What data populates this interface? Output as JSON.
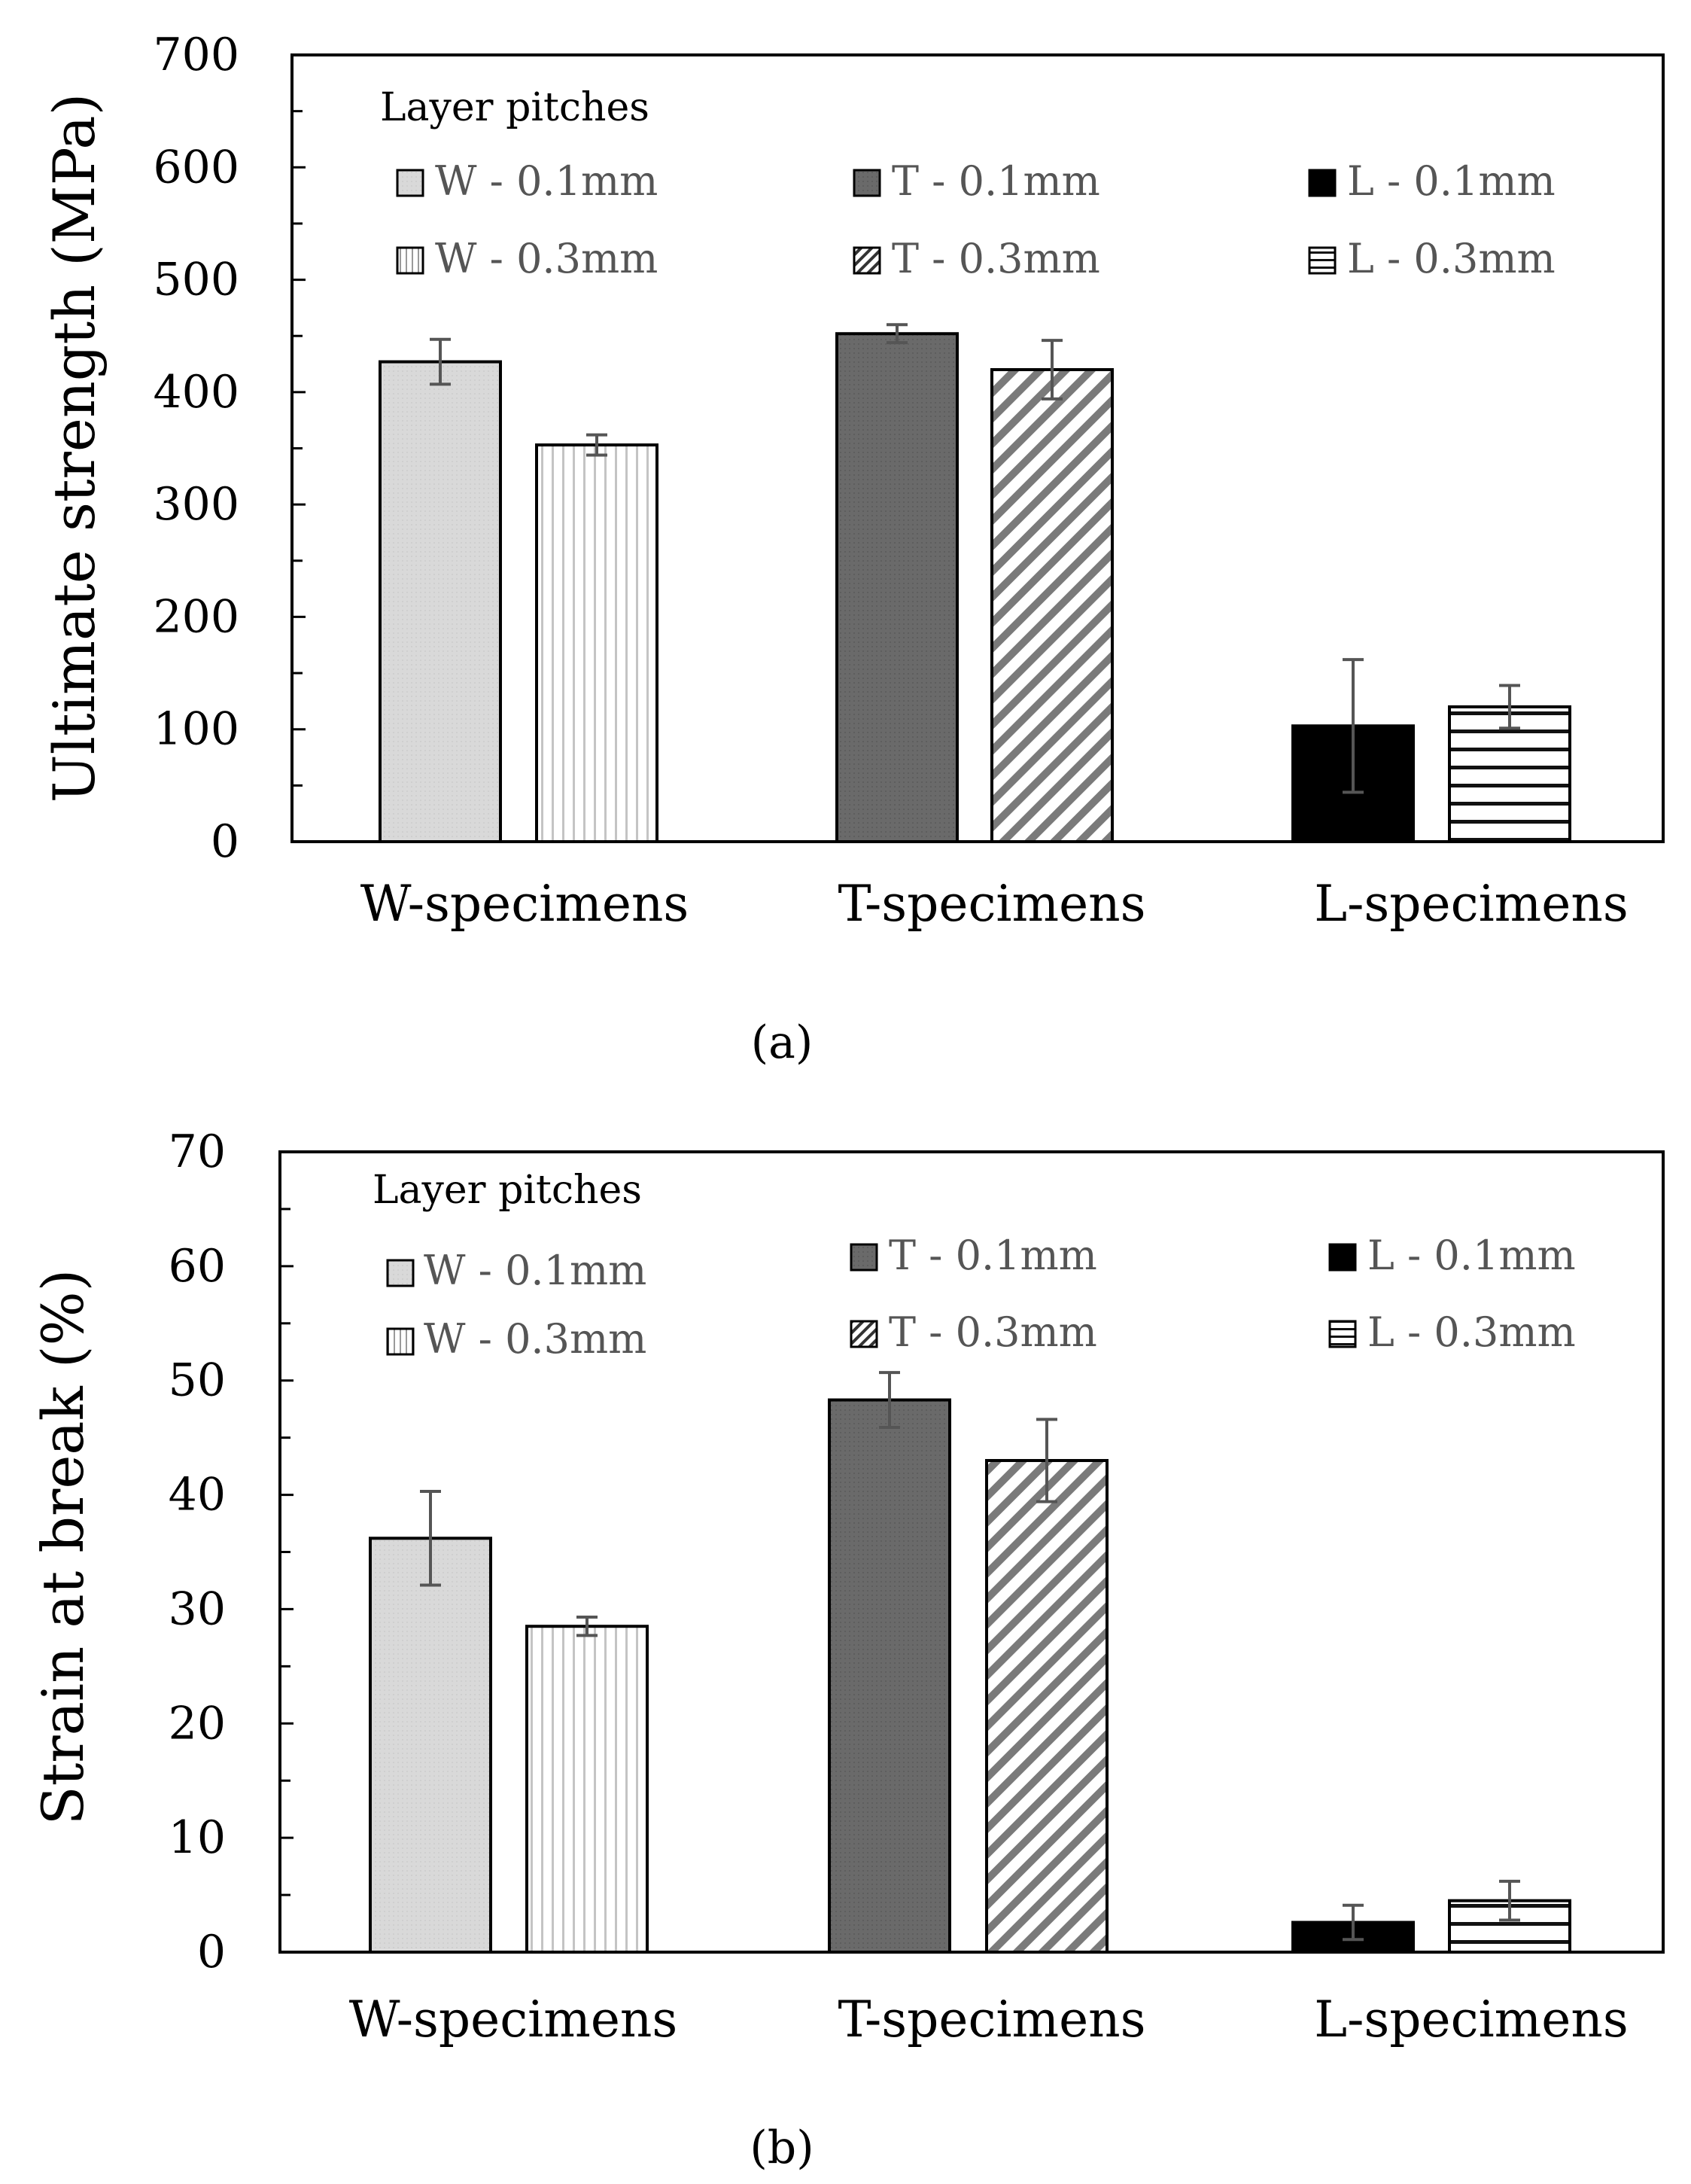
{
  "chart_data": [
    {
      "type": "bar",
      "panel_label": "(a)",
      "ylabel": "Ultimate strength (MPa)",
      "ylim": [
        0,
        700
      ],
      "ytick_labels": [
        "0",
        "100",
        "200",
        "300",
        "400",
        "500",
        "600",
        "700"
      ],
      "categories": [
        "W-specimens",
        "T-specimens",
        "L-specimens"
      ],
      "legend_title": "Layer pitches",
      "legend_columns": [
        [
          "W - 0.1mm",
          "W - 0.3mm"
        ],
        [
          "T - 0.1mm",
          "T - 0.3mm"
        ],
        [
          "L - 0.1mm",
          "L - 0.3mm"
        ]
      ],
      "groups": [
        {
          "category": "W-specimens",
          "bars": [
            {
              "name": "W - 0.1mm",
              "style": "light-gray",
              "value": 427,
              "err": 20
            },
            {
              "name": "W - 0.3mm",
              "style": "vertical-lines",
              "value": 353,
              "err": 9
            }
          ]
        },
        {
          "category": "T-specimens",
          "bars": [
            {
              "name": "T - 0.1mm",
              "style": "dark-gray",
              "value": 452,
              "err": 8
            },
            {
              "name": "T - 0.3mm",
              "style": "diagonal-lines",
              "value": 420,
              "err": 26
            }
          ]
        },
        {
          "category": "L-specimens",
          "bars": [
            {
              "name": "L - 0.1mm",
              "style": "black",
              "value": 103,
              "err": 59
            },
            {
              "name": "L - 0.3mm",
              "style": "horizontal-lines",
              "value": 120,
              "err": 19
            }
          ]
        }
      ]
    },
    {
      "type": "bar",
      "panel_label": "(b)",
      "ylabel": "Strain at break (%)",
      "ylim": [
        0,
        70
      ],
      "ytick_labels": [
        "0",
        "10",
        "20",
        "30",
        "40",
        "50",
        "60",
        "70"
      ],
      "categories": [
        "W-specimens",
        "T-specimens",
        "L-specimens"
      ],
      "legend_title": "Layer pitches",
      "legend_columns": [
        [
          "W - 0.1mm",
          "W - 0.3mm"
        ],
        [
          "T - 0.1mm",
          "T - 0.3mm"
        ],
        [
          "L - 0.1mm",
          "L - 0.3mm"
        ]
      ],
      "groups": [
        {
          "category": "W-specimens",
          "bars": [
            {
              "name": "W - 0.1mm",
              "style": "light-gray",
              "value": 36.2,
              "err": 4.1
            },
            {
              "name": "W - 0.3mm",
              "style": "vertical-lines",
              "value": 28.5,
              "err": 0.8
            }
          ]
        },
        {
          "category": "T-specimens",
          "bars": [
            {
              "name": "T - 0.1mm",
              "style": "dark-gray",
              "value": 48.3,
              "err": 2.4
            },
            {
              "name": "T - 0.3mm",
              "style": "diagonal-lines",
              "value": 43.0,
              "err": 3.6
            }
          ]
        },
        {
          "category": "L-specimens",
          "bars": [
            {
              "name": "L - 0.1mm",
              "style": "black",
              "value": 2.6,
              "err": 1.5
            },
            {
              "name": "L - 0.3mm",
              "style": "horizontal-lines",
              "value": 4.5,
              "err": 1.7
            }
          ]
        }
      ]
    }
  ]
}
